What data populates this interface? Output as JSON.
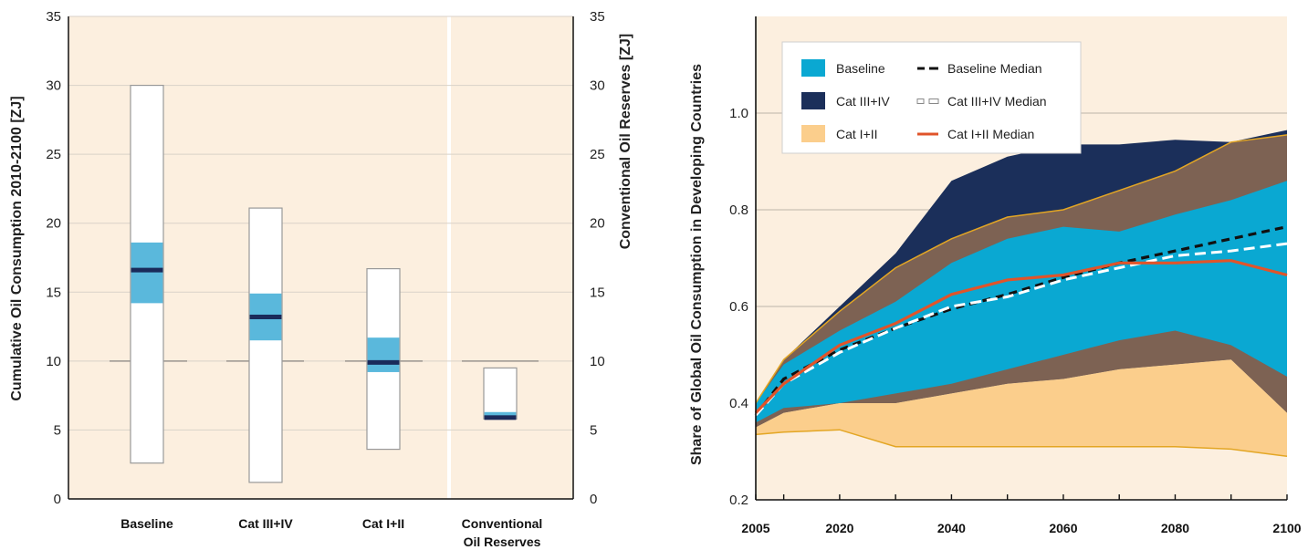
{
  "chart_data": [
    {
      "type": "bar",
      "ylabel": "Cumulative Oil Consumption 2010-2100 [ZJ]",
      "ylabel_right": "Conventional Oil Reserves [ZJ]",
      "ylim": [
        0,
        35
      ],
      "yticks": [
        "0",
        "5",
        "10",
        "15",
        "20",
        "25",
        "30",
        "35"
      ],
      "reference_line": 10,
      "categories": [
        "Baseline",
        "Cat III+IV",
        "Cat I+II",
        "Conventional Oil Reserves"
      ],
      "category_lines": [
        [
          "Baseline"
        ],
        [
          "Cat III+IV"
        ],
        [
          "Cat I+II"
        ],
        [
          "Conventional",
          "Oil Reserves"
        ]
      ],
      "ranges": [
        {
          "min": 2.6,
          "max": 30.0,
          "q_low": 14.2,
          "q_high": 18.6,
          "median": 16.6
        },
        {
          "min": 1.2,
          "max": 21.1,
          "q_low": 11.5,
          "q_high": 14.9,
          "median": 13.2
        },
        {
          "min": 3.6,
          "max": 16.7,
          "q_low": 9.2,
          "q_high": 11.7,
          "median": 9.9
        },
        {
          "min": 5.8,
          "max": 9.5,
          "q_low": 5.9,
          "q_high": 6.3,
          "median": 5.9
        }
      ],
      "colors": {
        "background": "#fcefdf",
        "range": "#ffffff",
        "interquartile": "#5ab8dc",
        "median": "#1a2a5a",
        "border": "#999999"
      }
    },
    {
      "type": "area",
      "ylabel": "Share of Global Oil Consumption in Developing Countries",
      "xlim": [
        2005,
        2100
      ],
      "ylim": [
        0.2,
        1.2
      ],
      "xtick_labels": [
        "2005",
        "2020",
        "2040",
        "2060",
        "2080",
        "2100"
      ],
      "ytick_labels": [
        "0.2",
        "0.4",
        "0.6",
        "0.8",
        "1.0"
      ],
      "x": [
        2005,
        2010,
        2020,
        2030,
        2040,
        2050,
        2060,
        2070,
        2080,
        2090,
        2100
      ],
      "bands": [
        {
          "name": "Cat III+IV",
          "color": "#1b2f5a",
          "upper": [
            0.4,
            0.49,
            0.6,
            0.71,
            0.86,
            0.91,
            0.935,
            0.935,
            0.945,
            0.94,
            0.965
          ],
          "lower": [
            0.35,
            0.38,
            0.4,
            0.4,
            0.42,
            0.44,
            0.45,
            0.47,
            0.48,
            0.49,
            0.38
          ]
        },
        {
          "name": "Cat I+II",
          "color": "#7d6253",
          "upper": [
            0.4,
            0.49,
            0.59,
            0.68,
            0.74,
            0.785,
            0.8,
            0.84,
            0.88,
            0.94,
            0.955
          ],
          "lower": [
            0.35,
            0.38,
            0.4,
            0.4,
            0.42,
            0.44,
            0.45,
            0.47,
            0.48,
            0.49,
            0.38
          ]
        },
        {
          "name": "Baseline",
          "color": "#0aa8d2",
          "upper": [
            0.4,
            0.48,
            0.55,
            0.61,
            0.69,
            0.74,
            0.765,
            0.755,
            0.79,
            0.82,
            0.86
          ],
          "lower": [
            0.36,
            0.39,
            0.4,
            0.42,
            0.44,
            0.47,
            0.5,
            0.53,
            0.55,
            0.52,
            0.455
          ]
        },
        {
          "name": "Cat I+II",
          "color": "#fbce8c",
          "upper": [
            0.35,
            0.38,
            0.4,
            0.4,
            0.42,
            0.44,
            0.45,
            0.47,
            0.48,
            0.49,
            0.38
          ],
          "lower": [
            0.335,
            0.34,
            0.345,
            0.31,
            0.31,
            0.31,
            0.31,
            0.31,
            0.31,
            0.305,
            0.29
          ]
        }
      ],
      "upper_edge_line": {
        "color": "#e3a624",
        "values": [
          0.4,
          0.49,
          0.59,
          0.68,
          0.74,
          0.785,
          0.8,
          0.84,
          0.88,
          0.94,
          0.955
        ]
      },
      "lower_edge_line": {
        "color": "#e3a624",
        "values": [
          0.335,
          0.34,
          0.345,
          0.31,
          0.31,
          0.31,
          0.31,
          0.31,
          0.31,
          0.305,
          0.29
        ]
      },
      "series": [
        {
          "name": "Baseline Median",
          "style": "dashed-black",
          "values": [
            0.375,
            0.45,
            0.51,
            0.555,
            0.595,
            0.625,
            0.66,
            0.69,
            0.715,
            0.74,
            0.765
          ]
        },
        {
          "name": "Cat III+IV Median",
          "style": "dashed-white",
          "values": [
            0.375,
            0.44,
            0.505,
            0.555,
            0.6,
            0.62,
            0.655,
            0.68,
            0.705,
            0.715,
            0.73
          ]
        },
        {
          "name": "Cat I+II Median",
          "style": "solid-orange",
          "values": [
            0.38,
            0.44,
            0.52,
            0.565,
            0.625,
            0.655,
            0.665,
            0.69,
            0.69,
            0.695,
            0.665
          ]
        }
      ],
      "legend": {
        "placement": "top-left",
        "items": [
          {
            "label": "Baseline",
            "kind": "swatch",
            "color": "#0aa8d2"
          },
          {
            "label": "Baseline Median",
            "kind": "line",
            "style": "dashed-black"
          },
          {
            "label": "Cat III+IV",
            "kind": "swatch",
            "color": "#1b2f5a"
          },
          {
            "label": "Cat III+IV Median",
            "kind": "line",
            "style": "dashed-white"
          },
          {
            "label": "Cat I+II",
            "kind": "swatch",
            "color": "#fbce8c"
          },
          {
            "label": "Cat I+II Median",
            "kind": "line",
            "style": "solid-orange"
          }
        ]
      },
      "colors": {
        "background": "#fcefdf",
        "grid": "#bdb5aa",
        "axis": "#111111"
      }
    }
  ]
}
